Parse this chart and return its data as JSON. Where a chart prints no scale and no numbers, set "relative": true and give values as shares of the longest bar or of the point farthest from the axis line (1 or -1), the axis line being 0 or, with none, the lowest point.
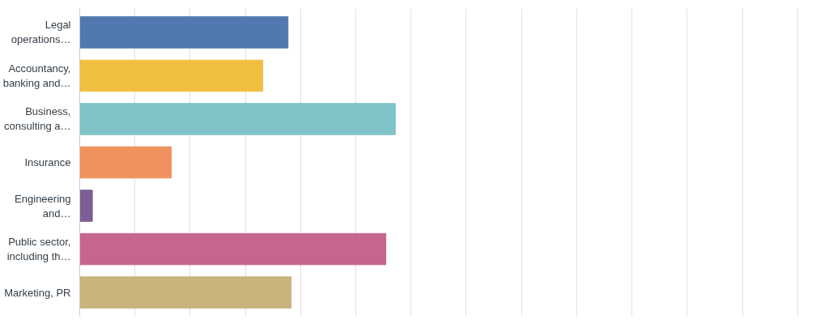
{
  "chart_data": {
    "type": "bar",
    "orientation": "horizontal",
    "relative": true,
    "grid": "x",
    "categories": [
      "Legal operations…",
      "Accountancy, banking and…",
      "Business, consulting a…",
      "Insurance",
      "Engineering and…",
      "Public sector, including th…",
      "Marketing, PR"
    ],
    "values": [
      0.66,
      0.58,
      1,
      0.29,
      0.04,
      0.97,
      0.67
    ],
    "colors": [
      "#5079b0",
      "#f0bf40",
      "#80c4c8",
      "#f0925e",
      "#7b5e94",
      "#c6658e",
      "#c8b47c"
    ]
  }
}
